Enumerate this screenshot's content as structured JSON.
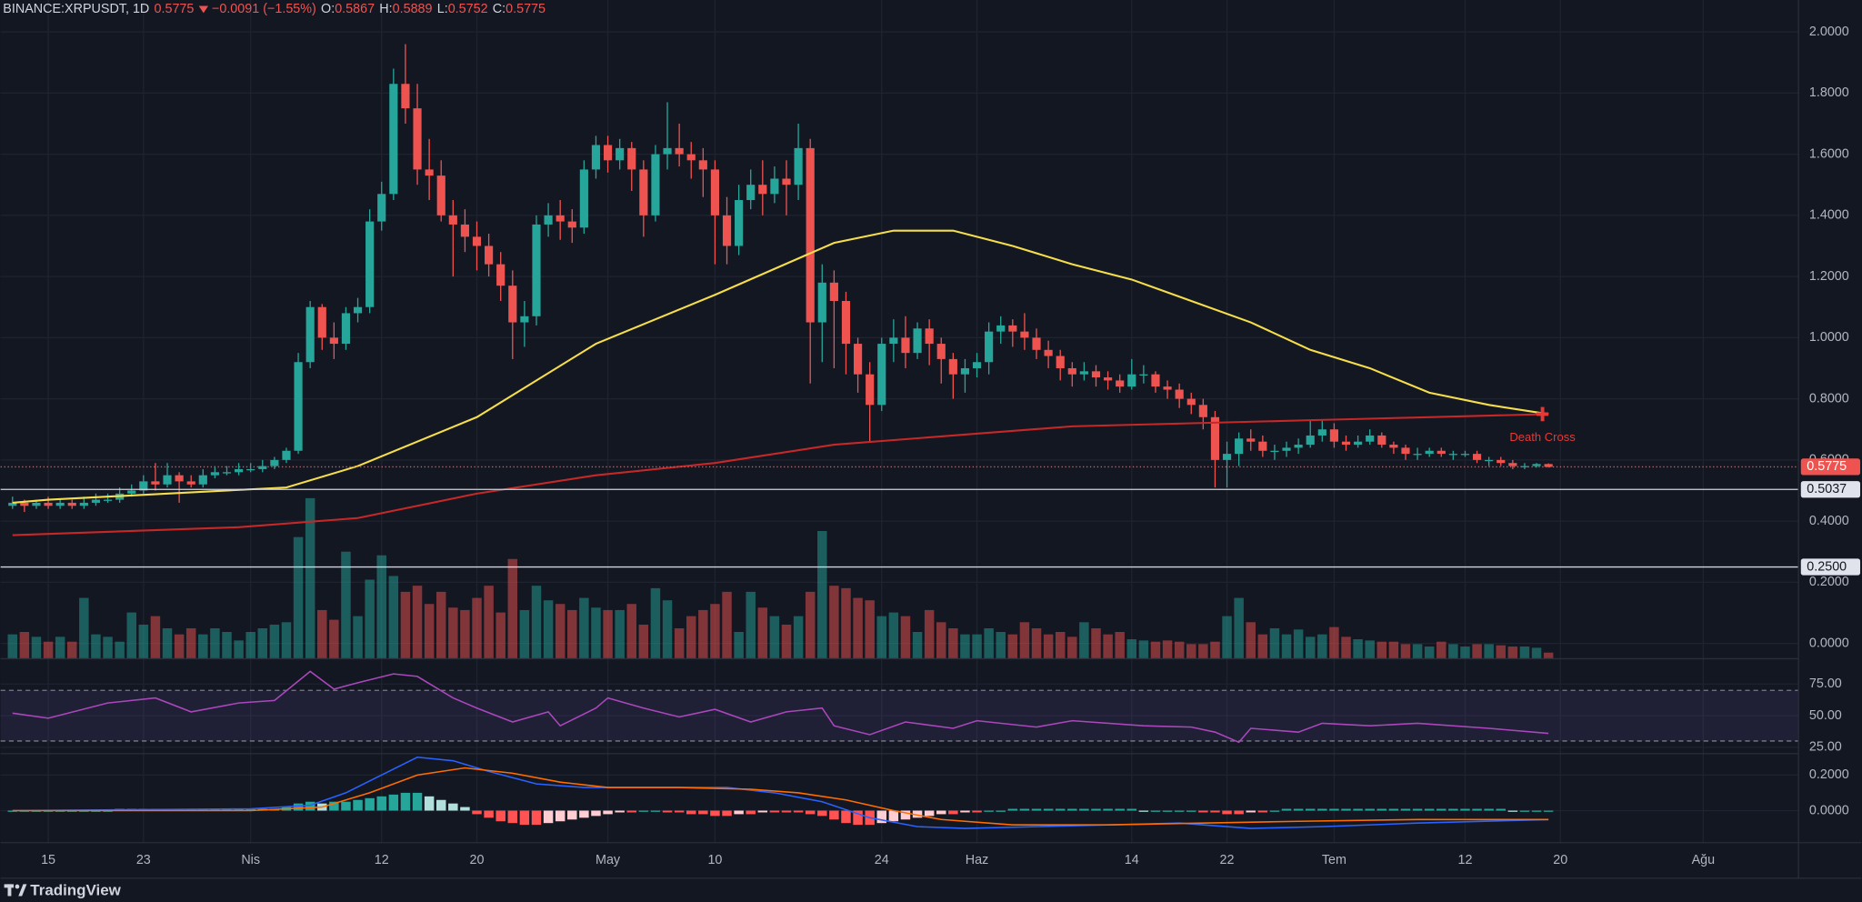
{
  "header": {
    "symbol": "BINANCE:XRPUSDT, 1D",
    "last": "0.5775",
    "change": "−0.0091 (−1.55%)",
    "ohlc": [
      {
        "label": "O:",
        "value": "0.5867"
      },
      {
        "label": "H:",
        "value": "0.5889"
      },
      {
        "label": "L:",
        "value": "0.5752"
      },
      {
        "label": "C:",
        "value": "0.5775"
      }
    ]
  },
  "chart_data": [
    {
      "type": "candlestick",
      "up_color": "#26a69a",
      "down_color": "#ef5350",
      "xlim": [
        -1,
        150
      ],
      "xticks": [
        {
          "value": 3,
          "label": "15"
        },
        {
          "value": 11,
          "label": "23"
        },
        {
          "value": 20,
          "label": "Nis"
        },
        {
          "value": 31,
          "label": "12"
        },
        {
          "value": 39,
          "label": "20"
        },
        {
          "value": 50,
          "label": "May"
        },
        {
          "value": 59,
          "label": "10"
        },
        {
          "value": 73,
          "label": "24"
        },
        {
          "value": 81,
          "label": "Haz"
        },
        {
          "value": 94,
          "label": "14"
        },
        {
          "value": 102,
          "label": "22"
        },
        {
          "value": 111,
          "label": "Tem"
        },
        {
          "value": 122,
          "label": "12"
        },
        {
          "value": 130,
          "label": "20"
        },
        {
          "value": 142,
          "label": "Ağu"
        }
      ],
      "ylim": [
        -0.05,
        2.05
      ],
      "yticks": [
        {
          "value": 0,
          "label": "0.0000"
        },
        {
          "value": 0.2,
          "label": "0.2000"
        },
        {
          "value": 0.4,
          "label": "0.4000"
        },
        {
          "value": 0.6,
          "label": "0.6000"
        },
        {
          "value": 0.8,
          "label": "0.8000"
        },
        {
          "value": 1,
          "label": "1.0000"
        },
        {
          "value": 1.2,
          "label": "1.2000"
        },
        {
          "value": 1.4,
          "label": "1.4000"
        },
        {
          "value": 1.6,
          "label": "1.6000"
        },
        {
          "value": 1.8,
          "label": "1.8000"
        },
        {
          "value": 2,
          "label": "2.0000"
        }
      ],
      "open": [
        0.45,
        0.46,
        0.45,
        0.46,
        0.45,
        0.46,
        0.45,
        0.46,
        0.47,
        0.47,
        0.49,
        0.5,
        0.53,
        0.52,
        0.55,
        0.53,
        0.52,
        0.55,
        0.56,
        0.56,
        0.57,
        0.57,
        0.58,
        0.6,
        0.63,
        0.92,
        1.1,
        1.0,
        0.98,
        1.08,
        1.1,
        1.38,
        1.47,
        1.83,
        1.75,
        1.55,
        1.53,
        1.4,
        1.37,
        1.33,
        1.3,
        1.24,
        1.17,
        1.05,
        1.07,
        1.37,
        1.4,
        1.38,
        1.36,
        1.55,
        1.63,
        1.58,
        1.62,
        1.55,
        1.4,
        1.6,
        1.62,
        1.6,
        1.58,
        1.55,
        1.4,
        1.3,
        1.45,
        1.5,
        1.47,
        1.52,
        1.5,
        1.62,
        1.05,
        1.18,
        1.12,
        0.98,
        0.88,
        0.78,
        0.98,
        1.0,
        0.95,
        1.03,
        0.98,
        0.93,
        0.88,
        0.9,
        0.92,
        1.02,
        1.04,
        1.02,
        1.0,
        0.96,
        0.94,
        0.9,
        0.88,
        0.89,
        0.87,
        0.86,
        0.84,
        0.88,
        0.88,
        0.84,
        0.83,
        0.8,
        0.78,
        0.74,
        0.6,
        0.62,
        0.67,
        0.66,
        0.63,
        0.63,
        0.64,
        0.65,
        0.68,
        0.7,
        0.66,
        0.65,
        0.66,
        0.68,
        0.65,
        0.64,
        0.62,
        0.62,
        0.63,
        0.62,
        0.62,
        0.62,
        0.6,
        0.6,
        0.59,
        0.58,
        0.58,
        0.5867
      ],
      "high": [
        0.48,
        0.47,
        0.47,
        0.48,
        0.47,
        0.47,
        0.48,
        0.49,
        0.49,
        0.51,
        0.52,
        0.55,
        0.59,
        0.59,
        0.56,
        0.55,
        0.57,
        0.58,
        0.58,
        0.59,
        0.59,
        0.6,
        0.61,
        0.64,
        0.95,
        1.12,
        1.11,
        1.05,
        1.1,
        1.13,
        1.42,
        1.51,
        1.88,
        1.96,
        1.83,
        1.65,
        1.58,
        1.45,
        1.42,
        1.38,
        1.34,
        1.28,
        1.22,
        1.12,
        1.4,
        1.44,
        1.45,
        1.42,
        1.58,
        1.66,
        1.66,
        1.65,
        1.64,
        1.58,
        1.63,
        1.77,
        1.7,
        1.64,
        1.62,
        1.58,
        1.46,
        1.5,
        1.55,
        1.58,
        1.56,
        1.58,
        1.7,
        1.65,
        1.24,
        1.22,
        1.15,
        1.0,
        0.92,
        1.0,
        1.06,
        1.07,
        1.05,
        1.06,
        1.0,
        0.95,
        0.93,
        0.95,
        1.05,
        1.07,
        1.06,
        1.08,
        1.03,
        0.99,
        0.96,
        0.92,
        0.92,
        0.91,
        0.89,
        0.88,
        0.93,
        0.91,
        0.89,
        0.86,
        0.85,
        0.82,
        0.8,
        0.76,
        0.66,
        0.69,
        0.7,
        0.68,
        0.65,
        0.66,
        0.67,
        0.73,
        0.73,
        0.72,
        0.68,
        0.68,
        0.7,
        0.69,
        0.66,
        0.65,
        0.64,
        0.64,
        0.64,
        0.63,
        0.63,
        0.63,
        0.61,
        0.61,
        0.6,
        0.59,
        0.59,
        0.5889
      ],
      "low": [
        0.44,
        0.43,
        0.44,
        0.44,
        0.44,
        0.44,
        0.44,
        0.45,
        0.46,
        0.46,
        0.48,
        0.49,
        0.5,
        0.51,
        0.46,
        0.51,
        0.51,
        0.54,
        0.55,
        0.55,
        0.56,
        0.56,
        0.57,
        0.59,
        0.62,
        0.9,
        0.96,
        0.93,
        0.96,
        1.05,
        1.08,
        1.35,
        1.45,
        1.7,
        1.5,
        1.45,
        1.38,
        1.2,
        1.28,
        1.22,
        1.2,
        1.12,
        0.93,
        0.97,
        1.04,
        1.33,
        1.32,
        1.31,
        1.34,
        1.52,
        1.54,
        1.55,
        1.48,
        1.33,
        1.38,
        1.55,
        1.56,
        1.52,
        1.46,
        1.24,
        1.24,
        1.27,
        1.42,
        1.4,
        1.44,
        1.4,
        1.45,
        0.85,
        0.92,
        0.9,
        0.88,
        0.82,
        0.66,
        0.76,
        0.92,
        0.9,
        0.93,
        0.91,
        0.85,
        0.8,
        0.82,
        0.87,
        0.88,
        0.98,
        0.97,
        0.96,
        0.93,
        0.9,
        0.86,
        0.84,
        0.86,
        0.84,
        0.83,
        0.82,
        0.83,
        0.85,
        0.82,
        0.8,
        0.77,
        0.75,
        0.7,
        0.51,
        0.51,
        0.58,
        0.63,
        0.61,
        0.6,
        0.61,
        0.62,
        0.64,
        0.66,
        0.64,
        0.63,
        0.64,
        0.65,
        0.64,
        0.62,
        0.6,
        0.6,
        0.61,
        0.61,
        0.6,
        0.61,
        0.59,
        0.58,
        0.58,
        0.57,
        0.57,
        0.575,
        0.5752
      ],
      "close": [
        0.46,
        0.45,
        0.46,
        0.45,
        0.46,
        0.45,
        0.46,
        0.47,
        0.47,
        0.49,
        0.5,
        0.53,
        0.52,
        0.55,
        0.53,
        0.52,
        0.55,
        0.56,
        0.56,
        0.57,
        0.57,
        0.58,
        0.6,
        0.63,
        0.92,
        1.1,
        1.0,
        0.98,
        1.08,
        1.1,
        1.38,
        1.47,
        1.83,
        1.75,
        1.55,
        1.53,
        1.4,
        1.37,
        1.33,
        1.3,
        1.24,
        1.17,
        1.05,
        1.07,
        1.37,
        1.4,
        1.38,
        1.36,
        1.55,
        1.63,
        1.58,
        1.62,
        1.55,
        1.4,
        1.6,
        1.62,
        1.6,
        1.58,
        1.55,
        1.4,
        1.3,
        1.45,
        1.5,
        1.47,
        1.52,
        1.5,
        1.62,
        1.05,
        1.18,
        1.12,
        0.98,
        0.88,
        0.78,
        0.98,
        1.0,
        0.95,
        1.03,
        0.98,
        0.93,
        0.88,
        0.9,
        0.92,
        1.02,
        1.04,
        1.02,
        1.0,
        0.96,
        0.94,
        0.9,
        0.88,
        0.89,
        0.87,
        0.86,
        0.84,
        0.88,
        0.88,
        0.84,
        0.83,
        0.8,
        0.78,
        0.74,
        0.6,
        0.62,
        0.67,
        0.66,
        0.63,
        0.63,
        0.64,
        0.65,
        0.68,
        0.7,
        0.66,
        0.65,
        0.66,
        0.68,
        0.65,
        0.64,
        0.62,
        0.62,
        0.63,
        0.62,
        0.62,
        0.62,
        0.6,
        0.6,
        0.59,
        0.58,
        0.58,
        0.5867,
        0.5775
      ],
      "volume": [
        20,
        22,
        18,
        14,
        18,
        14,
        50,
        20,
        18,
        14,
        38,
        28,
        35,
        25,
        20,
        25,
        20,
        25,
        22,
        15,
        22,
        25,
        28,
        30,
        100,
        132,
        40,
        32,
        88,
        35,
        65,
        85,
        68,
        55,
        60,
        45,
        55,
        42,
        40,
        50,
        60,
        38,
        82,
        40,
        60,
        48,
        45,
        40,
        50,
        42,
        40,
        40,
        45,
        28,
        58,
        48,
        25,
        35,
        40,
        45,
        55,
        22,
        55,
        42,
        35,
        28,
        35,
        55,
        105,
        60,
        58,
        50,
        48,
        35,
        38,
        35,
        22,
        40,
        30,
        25,
        20,
        20,
        25,
        22,
        20,
        30,
        25,
        20,
        22,
        18,
        30,
        25,
        20,
        22,
        16,
        15,
        14,
        15,
        14,
        12,
        12,
        14,
        35,
        50,
        30,
        20,
        25,
        20,
        24,
        18,
        20,
        26,
        18,
        16,
        15,
        14,
        14,
        12,
        12,
        10,
        14,
        12,
        10,
        12,
        12,
        11,
        10,
        10,
        9,
        5
      ],
      "moving_averages": [
        {
          "color": "#f5dd4b",
          "x": [
            0,
            3,
            23,
            29,
            39,
            49,
            59,
            69,
            74,
            79,
            84,
            89,
            94,
            99,
            104,
            109,
            114,
            119,
            124,
            129
          ],
          "values": [
            0.46,
            0.47,
            0.51,
            0.58,
            0.74,
            0.98,
            1.14,
            1.31,
            1.35,
            1.35,
            1.3,
            1.24,
            1.19,
            1.12,
            1.05,
            0.96,
            0.9,
            0.82,
            0.78,
            0.75
          ]
        },
        {
          "color": "#c62828",
          "x": [
            0,
            19,
            29,
            39,
            49,
            59,
            69,
            79,
            89,
            99,
            109,
            119,
            129
          ],
          "values": [
            0.354,
            0.38,
            0.41,
            0.49,
            0.55,
            0.59,
            0.65,
            0.68,
            0.71,
            0.72,
            0.73,
            0.74,
            0.75
          ]
        }
      ],
      "last_price": {
        "value": 0.5775,
        "label": "0.5775"
      },
      "hlines": [
        {
          "value": 0.5037,
          "label": "0.5037"
        },
        {
          "value": 0.25,
          "label": "0.2500"
        }
      ],
      "annotation": {
        "label": "Death Cross",
        "x": 128.5,
        "y": 0.75
      }
    },
    {
      "type": "line",
      "color": "#ab47bc",
      "ylim": [
        20,
        95
      ],
      "yticks": [
        {
          "value": 75,
          "label": "75.00"
        },
        {
          "value": 50,
          "label": "50.00"
        },
        {
          "value": 25,
          "label": "25.00"
        }
      ],
      "bands": [
        30,
        70
      ],
      "x": [
        0,
        3,
        8,
        12,
        15,
        19,
        22,
        25,
        27,
        29,
        32,
        34,
        37,
        39,
        42,
        45,
        46,
        49,
        50,
        53,
        56,
        59,
        62,
        65,
        68,
        69,
        72,
        75,
        79,
        81,
        86,
        89,
        95,
        99,
        101,
        103,
        104,
        108,
        110,
        114,
        118,
        124,
        129
      ],
      "values": [
        52,
        48,
        60,
        64,
        53,
        60,
        62,
        85,
        71,
        76,
        83,
        81,
        64,
        56,
        45,
        53,
        42,
        56,
        64,
        56,
        49,
        55,
        45,
        53,
        56,
        42,
        35,
        45,
        40,
        46,
        41,
        46,
        42,
        41,
        37,
        29,
        40,
        37,
        44,
        42,
        44,
        40,
        36
      ]
    },
    {
      "type": "macd",
      "ylim": [
        -0.18,
        0.32
      ],
      "yticks": [
        {
          "value": 0.2,
          "label": "0.2000"
        },
        {
          "value": 0,
          "label": "0.0000"
        }
      ],
      "hist_colors": [
        "#26a69a",
        "#b2dfdb",
        "#ffcdd2",
        "#ff5252"
      ],
      "histogram": [
        0,
        0,
        0,
        0,
        0,
        0,
        0,
        0,
        0,
        0.01,
        0.01,
        0.01,
        0.01,
        0.01,
        0.01,
        0.01,
        0.01,
        0.01,
        0.01,
        0.01,
        0.01,
        0.01,
        0.01,
        0.02,
        0.04,
        0.05,
        0.04,
        0.05,
        0.05,
        0.06,
        0.07,
        0.08,
        0.09,
        0.1,
        0.1,
        0.08,
        0.06,
        0.04,
        0.02,
        -0.02,
        -0.04,
        -0.06,
        -0.07,
        -0.08,
        -0.08,
        -0.07,
        -0.06,
        -0.05,
        -0.04,
        -0.03,
        -0.02,
        -0.01,
        -0.01,
        0,
        0,
        -0.01,
        -0.01,
        -0.02,
        -0.02,
        -0.03,
        -0.03,
        -0.02,
        -0.02,
        -0.01,
        -0.01,
        -0.01,
        -0.01,
        -0.02,
        -0.03,
        -0.05,
        -0.07,
        -0.08,
        -0.08,
        -0.07,
        -0.06,
        -0.05,
        -0.04,
        -0.03,
        -0.02,
        -0.02,
        -0.01,
        -0.01,
        0,
        0,
        0.01,
        0.01,
        0.01,
        0.01,
        0.01,
        0.01,
        0.01,
        0.01,
        0.01,
        0.01,
        0.01,
        0,
        0,
        0,
        0,
        0,
        -0.01,
        -0.01,
        -0.02,
        -0.02,
        -0.01,
        -0.01,
        0,
        0.01,
        0.01,
        0.01,
        0.01,
        0.01,
        0.01,
        0.01,
        0.01,
        0.01,
        0.01,
        0.01,
        0.01,
        0.01,
        0.01,
        0.01,
        0.01,
        0.01,
        0.01,
        0.01,
        0,
        0,
        0,
        0
      ],
      "series": [
        {
          "color": "#2962ff",
          "x": [
            0,
            20,
            25,
            28,
            31,
            34,
            37,
            40,
            44,
            48,
            52,
            56,
            60,
            64,
            68,
            72,
            76,
            80,
            86,
            92,
            98,
            104,
            110,
            118,
            129
          ],
          "values": [
            0,
            0.01,
            0.03,
            0.1,
            0.2,
            0.3,
            0.28,
            0.22,
            0.15,
            0.13,
            0.13,
            0.13,
            0.13,
            0.1,
            0.05,
            -0.04,
            -0.09,
            -0.1,
            -0.09,
            -0.08,
            -0.07,
            -0.1,
            -0.09,
            -0.07,
            -0.05
          ]
        },
        {
          "color": "#ff6d00",
          "x": [
            0,
            20,
            26,
            30,
            34,
            38,
            42,
            46,
            50,
            56,
            62,
            66,
            70,
            74,
            78,
            84,
            92,
            100,
            108,
            118,
            129
          ],
          "values": [
            0,
            0,
            0.02,
            0.1,
            0.2,
            0.24,
            0.21,
            0.16,
            0.13,
            0.13,
            0.12,
            0.1,
            0.06,
            0,
            -0.05,
            -0.08,
            -0.08,
            -0.07,
            -0.06,
            -0.05,
            -0.05
          ]
        }
      ]
    }
  ],
  "footer": {
    "brand": "TradingView"
  }
}
